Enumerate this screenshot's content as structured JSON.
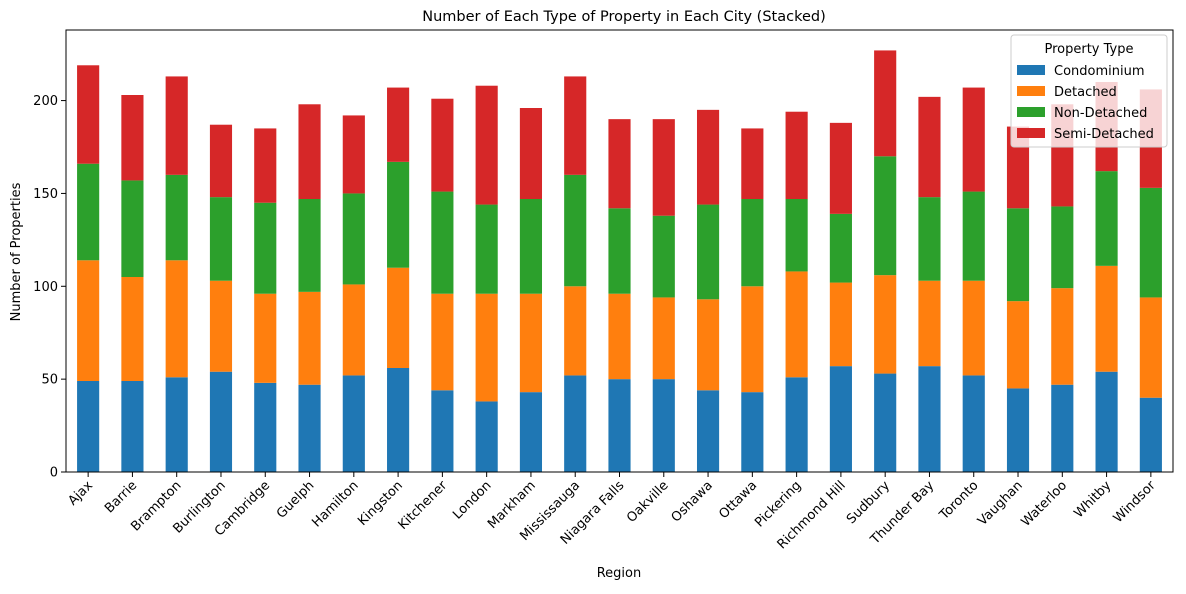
{
  "chart_data": {
    "type": "bar",
    "stacked": true,
    "title": "Number of Each Type of Property in Each City (Stacked)",
    "xlabel": "Region",
    "ylabel": "Number of Properties",
    "ylim": [
      0,
      238
    ],
    "yticks": [
      0,
      50,
      100,
      150,
      200
    ],
    "grid": false,
    "legend_title": "Property Type",
    "legend_position": "upper right",
    "categories": [
      "Ajax",
      "Barrie",
      "Brampton",
      "Burlington",
      "Cambridge",
      "Guelph",
      "Hamilton",
      "Kingston",
      "Kitchener",
      "London",
      "Markham",
      "Mississauga",
      "Niagara Falls",
      "Oakville",
      "Oshawa",
      "Ottawa",
      "Pickering",
      "Richmond Hill",
      "Sudbury",
      "Thunder Bay",
      "Toronto",
      "Vaughan",
      "Waterloo",
      "Whitby",
      "Windsor"
    ],
    "series": [
      {
        "name": "Condominium",
        "color": "#1f77b4",
        "values": [
          49,
          49,
          51,
          54,
          48,
          47,
          52,
          56,
          44,
          38,
          43,
          52,
          50,
          50,
          44,
          43,
          51,
          57,
          53,
          57,
          52,
          45,
          47,
          54,
          40
        ]
      },
      {
        "name": "Detached",
        "color": "#ff7f0e",
        "values": [
          65,
          56,
          63,
          49,
          48,
          50,
          49,
          54,
          52,
          58,
          53,
          48,
          46,
          44,
          49,
          57,
          57,
          45,
          53,
          46,
          51,
          47,
          52,
          57,
          54
        ]
      },
      {
        "name": "Non-Detached",
        "color": "#2ca02c",
        "values": [
          52,
          52,
          46,
          45,
          49,
          50,
          49,
          57,
          55,
          48,
          51,
          60,
          46,
          44,
          51,
          47,
          39,
          37,
          64,
          45,
          48,
          50,
          44,
          51,
          59
        ]
      },
      {
        "name": "Semi-Detached",
        "color": "#d62728",
        "values": [
          53,
          46,
          53,
          39,
          40,
          51,
          42,
          40,
          50,
          64,
          49,
          53,
          48,
          52,
          51,
          38,
          47,
          49,
          57,
          54,
          56,
          44,
          55,
          48,
          53
        ]
      }
    ]
  }
}
